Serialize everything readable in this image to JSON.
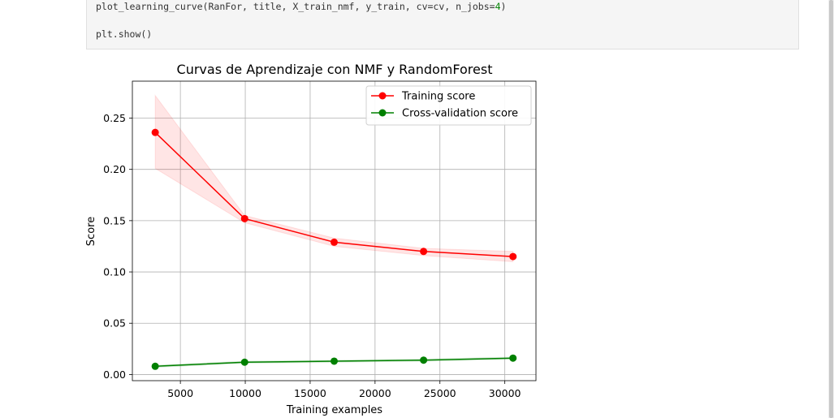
{
  "code": {
    "line1_prefix": "plot_learning_curve(RanFor, title, X_train_nmf, y_train, cv=cv, n_jobs=",
    "line1_num": "4",
    "line1_suffix": ")",
    "line2": "plt.show()"
  },
  "chart_data": {
    "type": "line",
    "title": "Curvas de Aprendizaje con NMF y RandomForest",
    "xlabel": "Training examples",
    "ylabel": "Score",
    "xlim": [
      1300,
      32400
    ],
    "ylim": [
      -0.006,
      0.286
    ],
    "xticks": [
      5000,
      10000,
      15000,
      20000,
      25000,
      30000
    ],
    "yticks": [
      0.0,
      0.05,
      0.1,
      0.15,
      0.2,
      0.25
    ],
    "x": [
      3060,
      9950,
      16850,
      23740,
      30630
    ],
    "grid": true,
    "legend_position": "top-right",
    "series": [
      {
        "name": "Training score",
        "color": "#ff0000",
        "values": [
          0.236,
          0.152,
          0.129,
          0.12,
          0.115
        ],
        "band_lower": [
          0.201,
          0.148,
          0.125,
          0.116,
          0.11
        ],
        "band_upper": [
          0.272,
          0.155,
          0.133,
          0.123,
          0.12
        ],
        "band_color": "#ff0000"
      },
      {
        "name": "Cross-validation score",
        "color": "#008000",
        "values": [
          0.008,
          0.012,
          0.013,
          0.014,
          0.016
        ],
        "band_lower": [
          0.007,
          0.011,
          0.012,
          0.013,
          0.015
        ],
        "band_upper": [
          0.009,
          0.013,
          0.014,
          0.015,
          0.017
        ],
        "band_color": "#008000"
      }
    ]
  }
}
